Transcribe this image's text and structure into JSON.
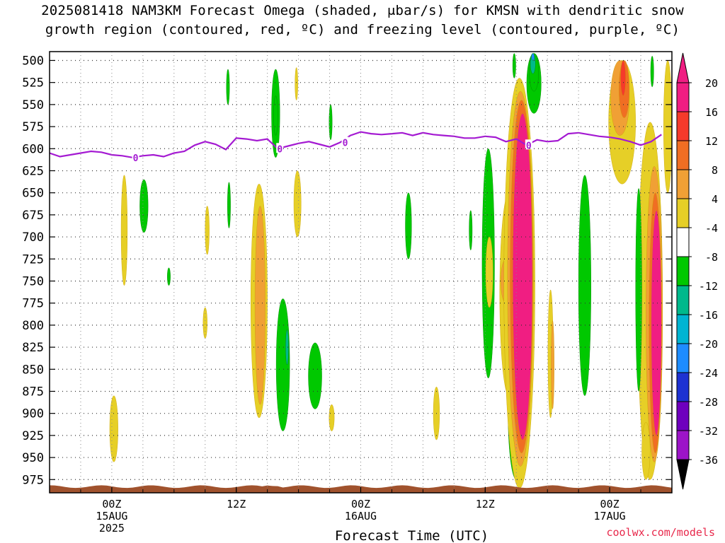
{
  "title_line1": "2025081418 NAM3KM Forecast Omega (shaded, μbar/s) for KMSN with dendritic snow",
  "title_line2": "growth region (contoured, red, ºC) and freezing level (contoured, purple, ºC)",
  "credit": "coolwx.com/models",
  "chart_data": {
    "type": "heatmap",
    "xlabel": "Forecast Time (UTC)",
    "x_ticks": [
      {
        "hour": 24,
        "lines": [
          "00Z",
          "15AUG",
          "2025"
        ]
      },
      {
        "hour": 36,
        "lines": [
          "12Z"
        ]
      },
      {
        "hour": 48,
        "lines": [
          "00Z",
          "16AUG"
        ]
      },
      {
        "hour": 60,
        "lines": [
          "12Z"
        ]
      },
      {
        "hour": 72,
        "lines": [
          "00Z",
          "17AUG"
        ]
      }
    ],
    "xlim": [
      18,
      78
    ],
    "x_grid_hours": [
      21,
      24,
      27,
      30,
      33,
      36,
      39,
      42,
      45,
      48,
      51,
      54,
      57,
      60,
      63,
      66,
      69,
      72,
      75
    ],
    "ylabel": "",
    "y_ticks": [
      500,
      525,
      550,
      575,
      600,
      625,
      650,
      675,
      700,
      725,
      750,
      775,
      800,
      825,
      850,
      875,
      900,
      925,
      950,
      975
    ],
    "ylim": [
      490,
      990
    ],
    "grid": true,
    "colorbar": {
      "labels": [
        20,
        16,
        12,
        8,
        4,
        -4,
        -8,
        -12,
        -16,
        -20,
        -24,
        -28,
        -32,
        -36
      ],
      "colors": [
        "#f01e82",
        "#f53a2b",
        "#f06e23",
        "#f0a035",
        "#e6cf27",
        "#ffffff",
        "#00c800",
        "#00b98c",
        "#00b4d2",
        "#1e8cff",
        "#1e32d2",
        "#6e00be",
        "#9c14c8",
        "#a0a0a0"
      ],
      "top_arrow": "#f01e82",
      "bottom_arrow": "#000000"
    },
    "freezing_level": {
      "label": "0",
      "color": "#a41ad2",
      "points": [
        [
          18,
          605
        ],
        [
          19,
          609
        ],
        [
          20,
          607
        ],
        [
          21,
          605
        ],
        [
          22,
          603
        ],
        [
          23,
          604
        ],
        [
          24,
          607
        ],
        [
          25,
          608
        ],
        [
          26,
          610
        ],
        [
          27,
          608
        ],
        [
          28,
          607
        ],
        [
          29,
          609
        ],
        [
          30,
          605
        ],
        [
          31,
          603
        ],
        [
          32,
          596
        ],
        [
          33,
          592
        ],
        [
          34,
          595
        ],
        [
          35,
          601
        ],
        [
          36,
          588
        ],
        [
          37,
          589
        ],
        [
          38,
          591
        ],
        [
          39,
          589
        ],
        [
          40,
          600
        ],
        [
          41,
          597
        ],
        [
          42,
          594
        ],
        [
          43,
          592
        ],
        [
          44,
          595
        ],
        [
          45,
          598
        ],
        [
          46,
          593
        ],
        [
          47,
          585
        ],
        [
          48,
          581
        ],
        [
          49,
          583
        ],
        [
          50,
          584
        ],
        [
          51,
          583
        ],
        [
          52,
          582
        ],
        [
          53,
          585
        ],
        [
          54,
          582
        ],
        [
          55,
          584
        ],
        [
          56,
          585
        ],
        [
          57,
          586
        ],
        [
          58,
          588
        ],
        [
          59,
          588
        ],
        [
          60,
          586
        ],
        [
          61,
          587
        ],
        [
          62,
          592
        ],
        [
          63,
          589
        ],
        [
          64,
          596
        ],
        [
          65,
          590
        ],
        [
          66,
          592
        ],
        [
          67,
          591
        ],
        [
          68,
          583
        ],
        [
          69,
          582
        ],
        [
          70,
          584
        ],
        [
          71,
          586
        ],
        [
          72,
          587
        ],
        [
          73,
          589
        ],
        [
          74,
          592
        ],
        [
          75,
          596
        ],
        [
          76,
          592
        ],
        [
          77,
          584
        ]
      ],
      "label_hours": [
        26.3,
        40.2,
        46.5,
        64.2
      ]
    },
    "omega_blobs": [
      {
        "hour": 24.2,
        "p1": 880,
        "p2": 955,
        "width": 0.8,
        "value": 4
      },
      {
        "hour": 25.2,
        "p1": 630,
        "p2": 755,
        "width": 0.6,
        "value": 4
      },
      {
        "hour": 27.1,
        "p1": 635,
        "p2": 695,
        "width": 0.8,
        "value": -6
      },
      {
        "hour": 29.5,
        "p1": 735,
        "p2": 755,
        "width": 0.3,
        "value": -6
      },
      {
        "hour": 33.2,
        "p1": 665,
        "p2": 720,
        "width": 0.4,
        "value": 4
      },
      {
        "hour": 33.0,
        "p1": 780,
        "p2": 815,
        "width": 0.4,
        "value": 4
      },
      {
        "hour": 35.2,
        "p1": 510,
        "p2": 550,
        "width": 0.3,
        "value": -6
      },
      {
        "hour": 35.3,
        "p1": 638,
        "p2": 690,
        "width": 0.3,
        "value": -6
      },
      {
        "hour": 38.2,
        "p1": 640,
        "p2": 905,
        "width": 1.6,
        "value": 4
      },
      {
        "hour": 38.3,
        "p1": 665,
        "p2": 890,
        "width": 1.0,
        "value": 8
      },
      {
        "hour": 39.8,
        "p1": 510,
        "p2": 610,
        "width": 0.8,
        "value": -6
      },
      {
        "hour": 39.8,
        "p1": 540,
        "p2": 585,
        "width": 0.4,
        "value": -10
      },
      {
        "hour": 40.5,
        "p1": 770,
        "p2": 920,
        "width": 1.3,
        "value": -6
      },
      {
        "hour": 40.9,
        "p1": 805,
        "p2": 845,
        "width": 0.3,
        "value": -14
      },
      {
        "hour": 41.8,
        "p1": 508,
        "p2": 545,
        "width": 0.25,
        "value": 4
      },
      {
        "hour": 41.9,
        "p1": 625,
        "p2": 700,
        "width": 0.7,
        "value": 4
      },
      {
        "hour": 43.6,
        "p1": 820,
        "p2": 895,
        "width": 1.3,
        "value": -6
      },
      {
        "hour": 45.1,
        "p1": 550,
        "p2": 590,
        "width": 0.3,
        "value": -6
      },
      {
        "hour": 45.2,
        "p1": 890,
        "p2": 920,
        "width": 0.5,
        "value": 4
      },
      {
        "hour": 52.6,
        "p1": 650,
        "p2": 725,
        "width": 0.6,
        "value": -6
      },
      {
        "hour": 55.3,
        "p1": 870,
        "p2": 930,
        "width": 0.6,
        "value": 4
      },
      {
        "hour": 58.6,
        "p1": 670,
        "p2": 715,
        "width": 0.3,
        "value": -6
      },
      {
        "hour": 60.3,
        "p1": 600,
        "p2": 860,
        "width": 1.2,
        "value": -6
      },
      {
        "hour": 60.4,
        "p1": 700,
        "p2": 780,
        "width": 0.7,
        "value": 4
      },
      {
        "hour": 62.3,
        "p1": 650,
        "p2": 880,
        "width": 1.8,
        "value": 4
      },
      {
        "hour": 62.0,
        "p1": 725,
        "p2": 775,
        "width": 1.0,
        "value": 8
      },
      {
        "hour": 63.0,
        "p1": 820,
        "p2": 975,
        "width": 1.6,
        "value": -6
      },
      {
        "hour": 63.0,
        "p1": 880,
        "p2": 960,
        "width": 0.6,
        "value": -10
      },
      {
        "hour": 63.3,
        "p1": 520,
        "p2": 985,
        "width": 3.0,
        "value": 4
      },
      {
        "hour": 63.4,
        "p1": 535,
        "p2": 960,
        "width": 2.5,
        "value": 8
      },
      {
        "hour": 63.5,
        "p1": 545,
        "p2": 945,
        "width": 2.2,
        "value": 12
      },
      {
        "hour": 63.6,
        "p1": 560,
        "p2": 930,
        "width": 1.9,
        "value": 20
      },
      {
        "hour": 62.8,
        "p1": 492,
        "p2": 520,
        "width": 0.3,
        "value": -6
      },
      {
        "hour": 64.7,
        "p1": 492,
        "p2": 560,
        "width": 1.4,
        "value": -6
      },
      {
        "hour": 64.7,
        "p1": 492,
        "p2": 535,
        "width": 0.9,
        "value": -10
      },
      {
        "hour": 64.6,
        "p1": 492,
        "p2": 515,
        "width": 0.5,
        "value": -14
      },
      {
        "hour": 64.6,
        "p1": 492,
        "p2": 500,
        "width": 0.3,
        "value": -20
      },
      {
        "hour": 66.3,
        "p1": 760,
        "p2": 905,
        "width": 0.5,
        "value": 4
      },
      {
        "hour": 66.5,
        "p1": 795,
        "p2": 895,
        "width": 0.3,
        "value": 8
      },
      {
        "hour": 69.6,
        "p1": 630,
        "p2": 880,
        "width": 1.2,
        "value": -6
      },
      {
        "hour": 73.2,
        "p1": 500,
        "p2": 640,
        "width": 2.6,
        "value": 4
      },
      {
        "hour": 73.0,
        "p1": 500,
        "p2": 585,
        "width": 1.8,
        "value": 8
      },
      {
        "hour": 73.4,
        "p1": 500,
        "p2": 565,
        "width": 1.0,
        "value": 12
      },
      {
        "hour": 73.3,
        "p1": 500,
        "p2": 540,
        "width": 0.5,
        "value": 16
      },
      {
        "hour": 75.9,
        "p1": 570,
        "p2": 975,
        "width": 2.4,
        "value": 4
      },
      {
        "hour": 76.3,
        "p1": 620,
        "p2": 955,
        "width": 1.6,
        "value": 8
      },
      {
        "hour": 76.4,
        "p1": 650,
        "p2": 945,
        "width": 1.2,
        "value": 12
      },
      {
        "hour": 76.5,
        "p1": 670,
        "p2": 925,
        "width": 1.0,
        "value": 20
      },
      {
        "hour": 74.8,
        "p1": 645,
        "p2": 875,
        "width": 0.6,
        "value": -6
      },
      {
        "hour": 76.1,
        "p1": 495,
        "p2": 530,
        "width": 0.3,
        "value": -6
      },
      {
        "hour": 75.5,
        "p1": 910,
        "p2": 975,
        "width": 0.8,
        "value": 4
      },
      {
        "hour": 77.6,
        "p1": 500,
        "p2": 650,
        "width": 0.8,
        "value": 4
      }
    ],
    "terrain_color": "#a0522d"
  }
}
